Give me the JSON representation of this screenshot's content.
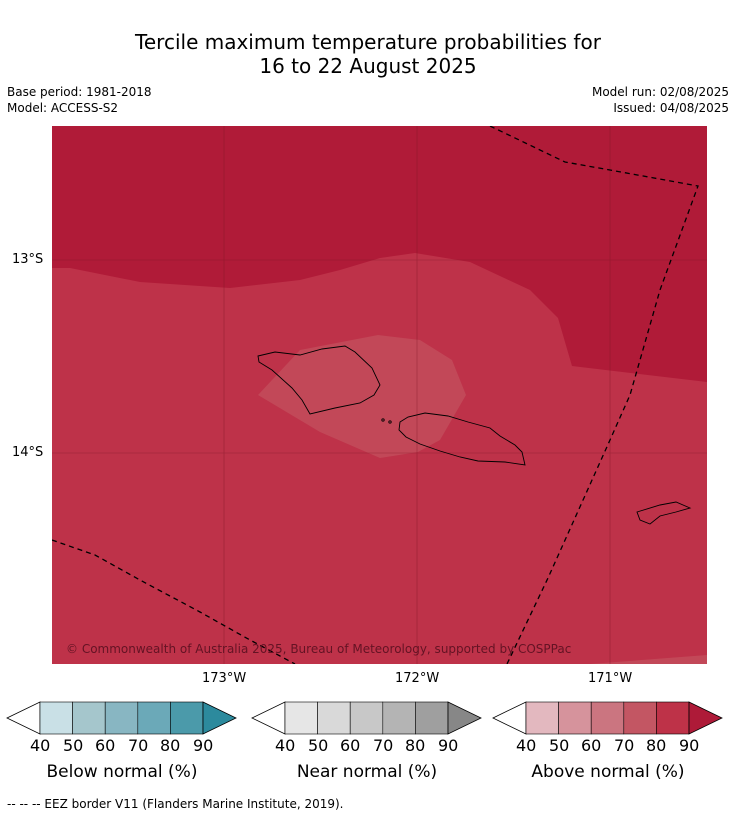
{
  "title_line1": "Tercile maximum temperature probabilities for",
  "title_line2": "16 to 22 August 2025",
  "base_period": "Base period: 1981-2018",
  "model": "Model: ACCESS-S2",
  "model_run": "Model run: 02/08/2025",
  "issued": "Issued: 04/08/2025",
  "lat_ticks": [
    "13°S",
    "14°S"
  ],
  "lon_ticks": [
    "173°W",
    "172°W",
    "171°W"
  ],
  "copyright": "© Commonwealth of Australia 2025, Bureau of Meteorology, supported by COSPPac",
  "colorbars": [
    {
      "label": "Below normal (%)",
      "ticks": [
        "40",
        "50",
        "60",
        "70",
        "80",
        "90"
      ],
      "colors": [
        "#ffffff",
        "#c9e0e6",
        "#a5c6cc",
        "#88b6c2",
        "#6ba9b8",
        "#4b9aaa",
        "#2c8a9d"
      ]
    },
    {
      "label": "Near normal (%)",
      "ticks": [
        "40",
        "50",
        "60",
        "70",
        "80",
        "90"
      ],
      "colors": [
        "#ffffff",
        "#e6e6e6",
        "#d9d9d9",
        "#c8c8c8",
        "#b4b4b4",
        "#9f9f9f",
        "#878787"
      ]
    },
    {
      "label": "Above normal (%)",
      "ticks": [
        "40",
        "50",
        "60",
        "70",
        "80",
        "90"
      ],
      "colors": [
        "#ffffff",
        "#e3b8bf",
        "#d6939c",
        "#cb7580",
        "#c35663",
        "#be3248",
        "#ae1a38"
      ]
    }
  ],
  "footnote": "--  --  -- EEZ border V11 (Flanders Marine Institute, 2019).",
  "map_colors": {
    "above_90": "#b01b38",
    "above_80": "#be3249",
    "above_70": "#c24858"
  }
}
